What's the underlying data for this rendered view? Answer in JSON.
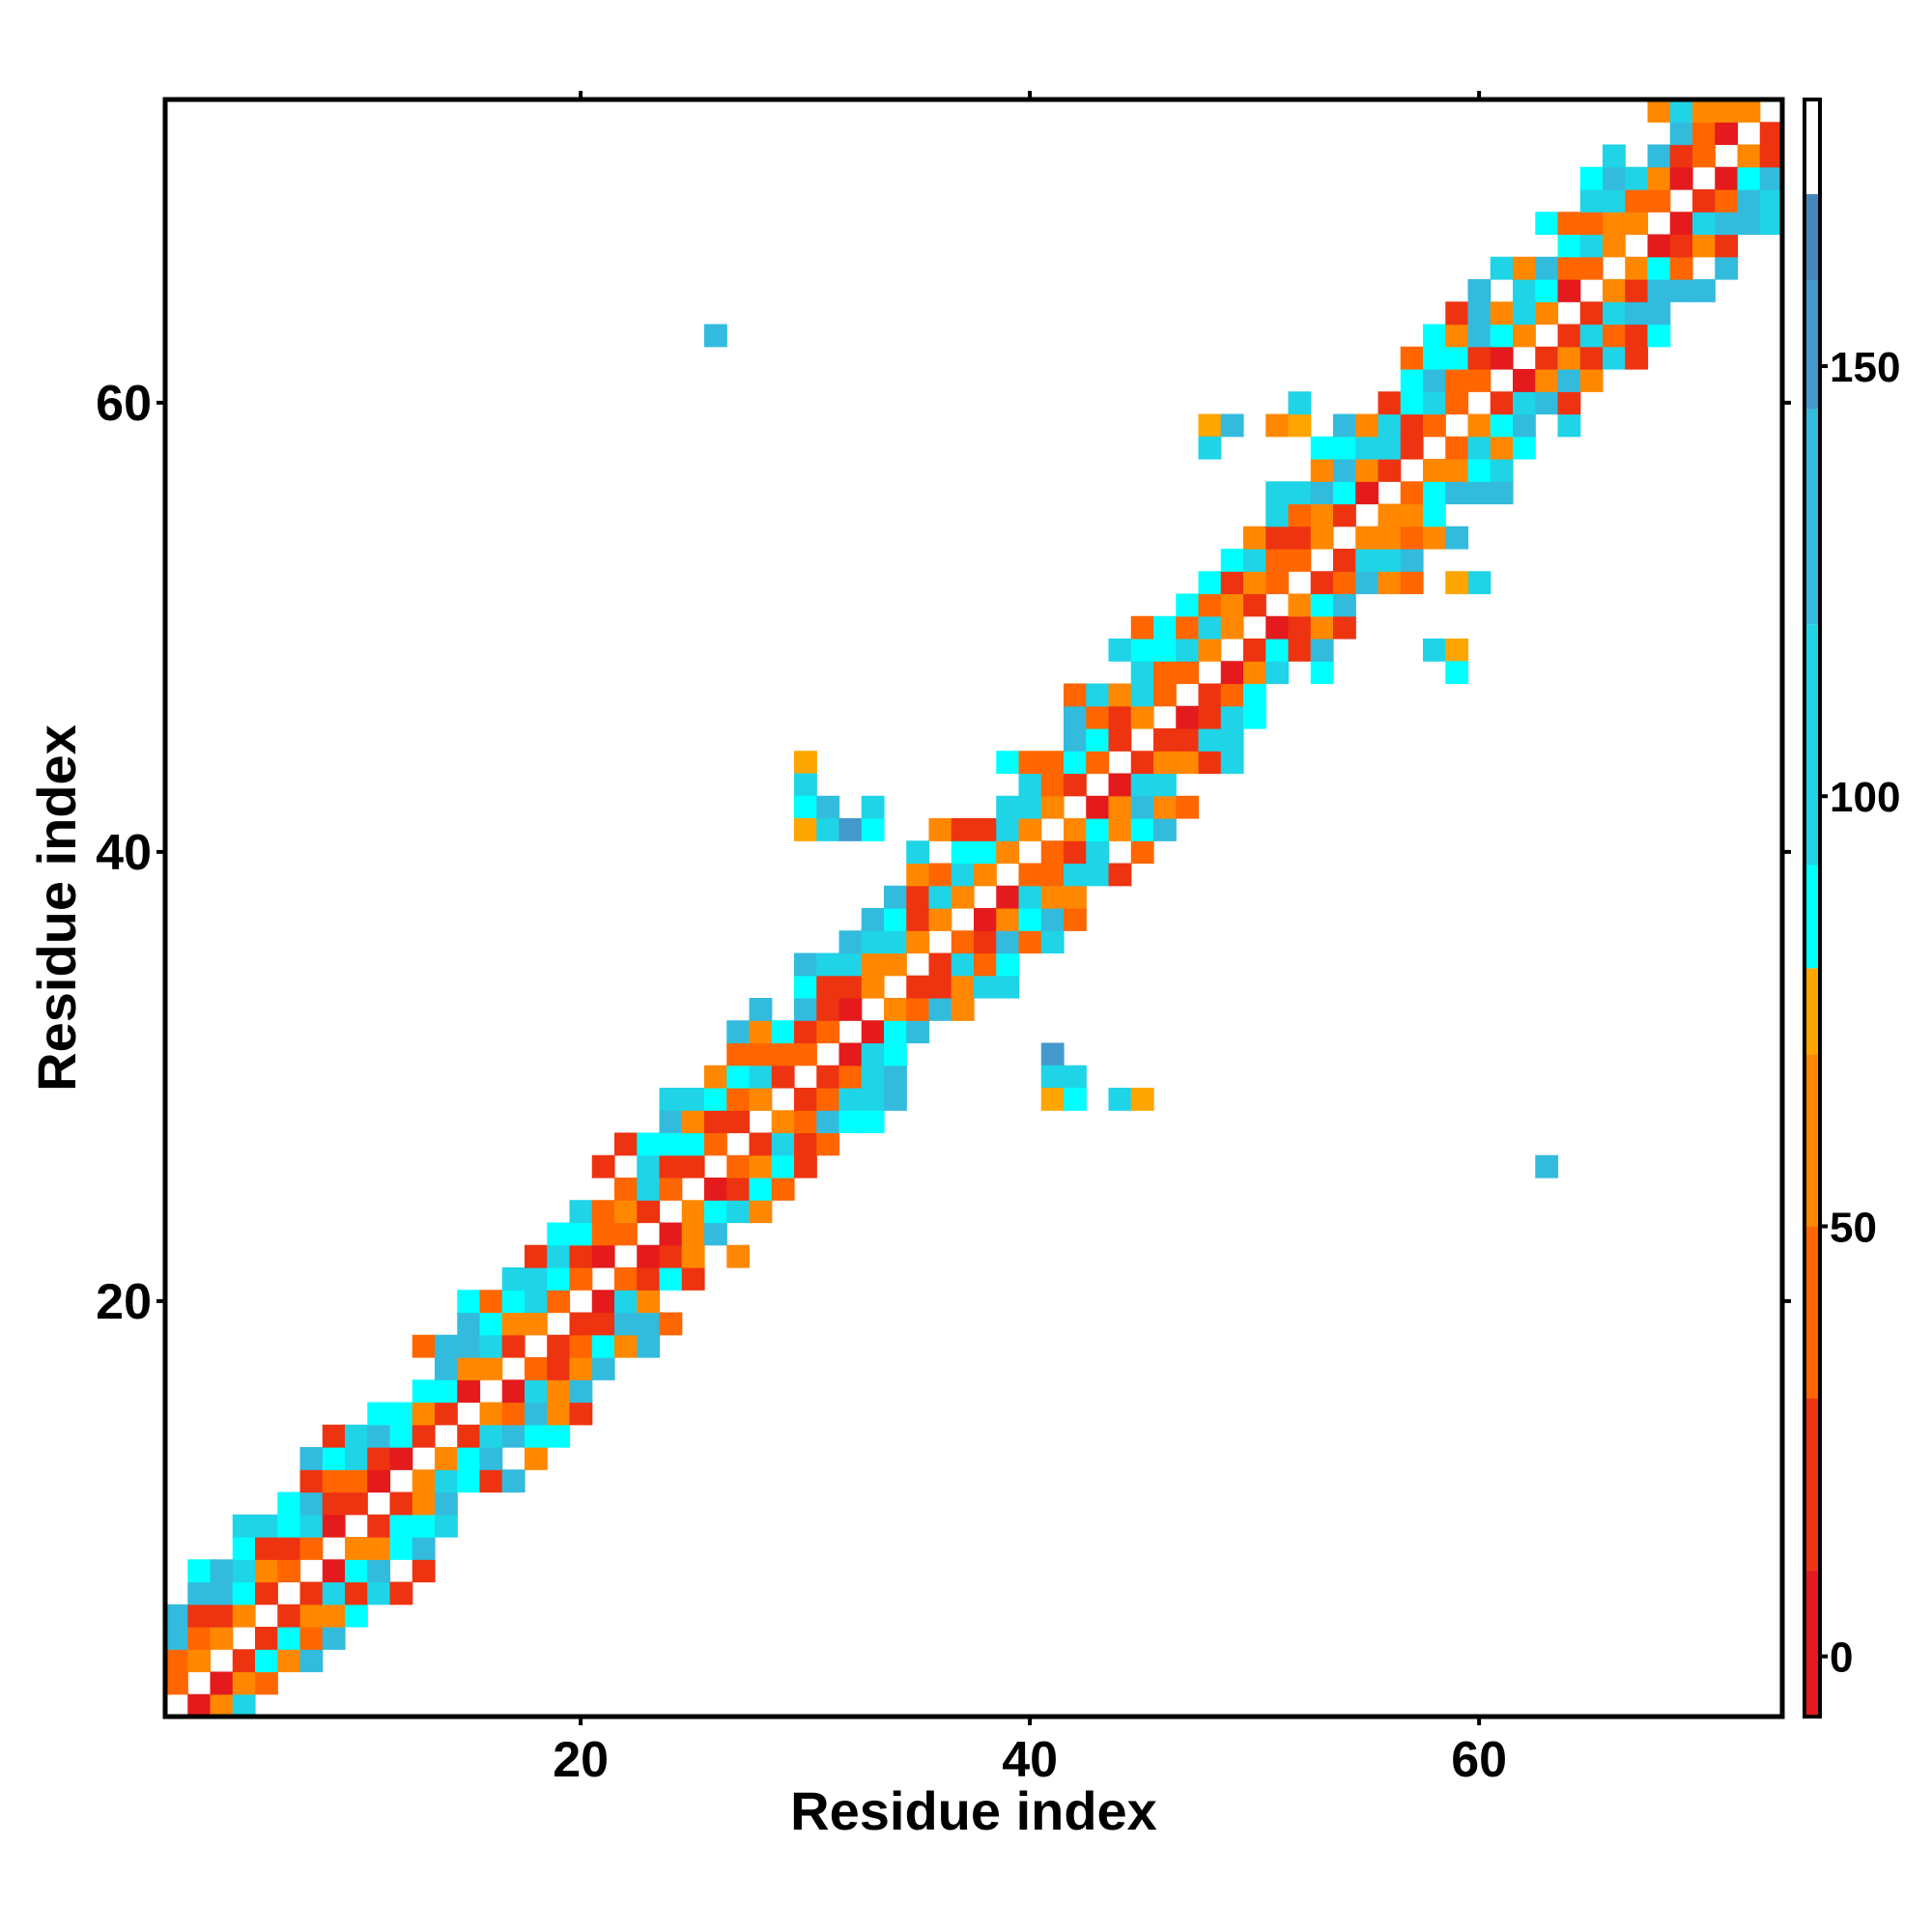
{
  "chart_data": {
    "type": "heatmap",
    "title": "",
    "xlabel": "Residue index",
    "ylabel": "Residue index",
    "xlim": [
      1.5,
      73.5
    ],
    "ylim": [
      1.5,
      73.5
    ],
    "x_ticks": [
      20,
      40,
      60
    ],
    "y_ticks": [
      20,
      40,
      60
    ],
    "grid": false,
    "colorbar": {
      "range": [
        -7,
        181
      ],
      "ticks": [
        0,
        50,
        100,
        150
      ],
      "bands": [
        {
          "from": -7,
          "to": 10,
          "color": "#e41a1c"
        },
        {
          "from": 10,
          "to": 30,
          "color": "#ee3311"
        },
        {
          "from": 30,
          "to": 50,
          "color": "#ff6600"
        },
        {
          "from": 50,
          "to": 70,
          "color": "#ff8800"
        },
        {
          "from": 70,
          "to": 80,
          "color": "#ffa500"
        },
        {
          "from": 80,
          "to": 92,
          "color": "#00ffff"
        },
        {
          "from": 92,
          "to": 120,
          "color": "#1fd4e6"
        },
        {
          "from": 120,
          "to": 145,
          "color": "#33bbdd"
        },
        {
          "from": 145,
          "to": 160,
          "color": "#4499cc"
        },
        {
          "from": 160,
          "to": 170,
          "color": "#4488bb"
        },
        {
          "from": 170,
          "to": 181,
          "color": "#ffffff"
        }
      ]
    },
    "diagonal_band": {
      "x_start": 2,
      "x_end": 73,
      "offset_min": -5,
      "offset_max": 5,
      "color_values": [
        5,
        25,
        40,
        60,
        75,
        85,
        105,
        130
      ]
    },
    "off_diagonal_points": [
      {
        "x": 26,
        "y": 63,
        "value": 130
      },
      {
        "x": 63,
        "y": 26,
        "value": 130
      },
      {
        "x": 30,
        "y": 44,
        "value": 75
      },
      {
        "x": 30,
        "y": 43,
        "value": 105
      },
      {
        "x": 30,
        "y": 42,
        "value": 85
      },
      {
        "x": 31,
        "y": 42,
        "value": 130
      },
      {
        "x": 30,
        "y": 41,
        "value": 75
      },
      {
        "x": 31,
        "y": 41,
        "value": 105
      },
      {
        "x": 32,
        "y": 41,
        "value": 150
      },
      {
        "x": 33,
        "y": 41,
        "value": 85
      },
      {
        "x": 33,
        "y": 42,
        "value": 105
      },
      {
        "x": 41,
        "y": 31,
        "value": 150
      },
      {
        "x": 41,
        "y": 30,
        "value": 105
      },
      {
        "x": 42,
        "y": 30,
        "value": 105
      },
      {
        "x": 41,
        "y": 29,
        "value": 75
      },
      {
        "x": 42,
        "y": 29,
        "value": 85
      },
      {
        "x": 44,
        "y": 29,
        "value": 105
      },
      {
        "x": 45,
        "y": 29,
        "value": 75
      },
      {
        "x": 48,
        "y": 59,
        "value": 75
      },
      {
        "x": 49,
        "y": 59,
        "value": 130
      },
      {
        "x": 48,
        "y": 58,
        "value": 105
      },
      {
        "x": 51,
        "y": 59,
        "value": 60
      },
      {
        "x": 52,
        "y": 59,
        "value": 75
      },
      {
        "x": 52,
        "y": 60,
        "value": 105
      },
      {
        "x": 58,
        "y": 49,
        "value": 105
      },
      {
        "x": 59,
        "y": 49,
        "value": 75
      },
      {
        "x": 59,
        "y": 48,
        "value": 85
      },
      {
        "x": 60,
        "y": 52,
        "value": 105
      },
      {
        "x": 59,
        "y": 52,
        "value": 75
      }
    ]
  }
}
